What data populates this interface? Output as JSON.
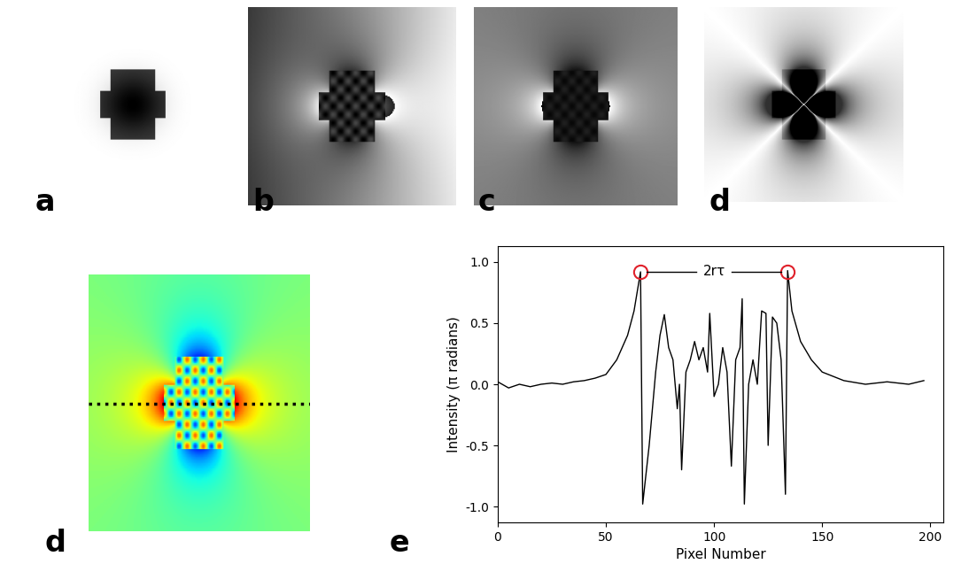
{
  "panels": {
    "labels": [
      "a",
      "b",
      "c",
      "d",
      "d",
      "e"
    ]
  },
  "chart_data": {
    "type": "line",
    "x_label": "Pixel Number",
    "y_label": "Intensity (π radians)",
    "color": "#000000",
    "x": [
      0,
      5,
      10,
      15,
      20,
      25,
      30,
      35,
      40,
      45,
      50,
      55,
      60,
      63,
      66,
      67,
      70,
      73,
      75,
      77,
      79,
      81,
      83,
      84,
      85,
      87,
      89,
      91,
      93,
      95,
      97,
      98,
      100,
      102,
      104,
      106,
      108,
      110,
      112,
      113,
      114,
      116,
      118,
      120,
      122,
      124,
      125,
      127,
      129,
      131,
      133,
      134,
      136,
      140,
      145,
      150,
      160,
      170,
      180,
      190,
      197
    ],
    "values": [
      0.02,
      -0.03,
      0.0,
      -0.02,
      0.0,
      0.01,
      0.0,
      0.02,
      0.03,
      0.05,
      0.08,
      0.2,
      0.4,
      0.6,
      0.92,
      -0.98,
      -0.5,
      0.1,
      0.4,
      0.57,
      0.3,
      0.2,
      -0.2,
      0.0,
      -0.7,
      0.1,
      0.2,
      0.35,
      0.2,
      0.3,
      0.1,
      0.58,
      -0.1,
      0.0,
      0.3,
      0.1,
      -0.67,
      0.2,
      0.3,
      0.7,
      -0.98,
      0.0,
      0.2,
      0.0,
      0.6,
      0.58,
      -0.5,
      0.55,
      0.5,
      0.2,
      -0.9,
      0.93,
      0.6,
      0.35,
      0.2,
      0.1,
      0.03,
      0.0,
      0.02,
      0.0,
      0.03
    ],
    "xlim": [
      0,
      206
    ],
    "ylim": [
      -1.13,
      1.13
    ],
    "xticks": [
      0,
      50,
      100,
      150,
      200
    ],
    "yticks": [
      {
        "value": -1,
        "label": "-1.0"
      },
      {
        "value": -0.5,
        "label": "-0.5"
      },
      {
        "value": 0,
        "label": "0.0"
      },
      {
        "value": 0.5,
        "label": "0.5"
      },
      {
        "value": 1,
        "label": "1.0"
      }
    ],
    "annotations": [
      {
        "text": "2rτ",
        "x": [
          66,
          134
        ],
        "y": 0.92,
        "color": "#e0202a"
      }
    ]
  }
}
